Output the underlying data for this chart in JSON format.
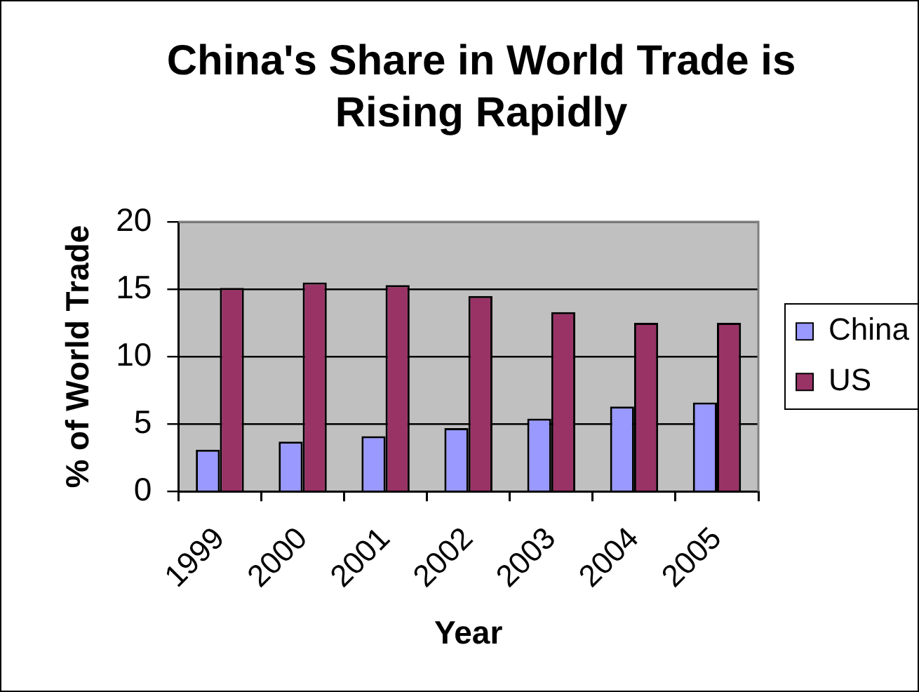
{
  "chart_data": {
    "type": "bar",
    "title": "China's Share in World Trade is Rising Rapidly",
    "xlabel": "Year",
    "ylabel": "% of World Trade",
    "categories": [
      "1999",
      "2000",
      "2001",
      "2002",
      "2003",
      "2004",
      "2005"
    ],
    "series": [
      {
        "name": "China",
        "color": "#9999ff",
        "values": [
          3.1,
          3.7,
          4.1,
          4.7,
          5.4,
          6.3,
          6.6
        ]
      },
      {
        "name": "US",
        "color": "#993366",
        "values": [
          15.1,
          15.5,
          15.3,
          14.5,
          13.3,
          12.5,
          12.5
        ]
      }
    ],
    "ylim": [
      0,
      20
    ],
    "yticks": [
      0,
      5,
      10,
      15,
      20
    ],
    "grid": "y",
    "legend": "right"
  }
}
